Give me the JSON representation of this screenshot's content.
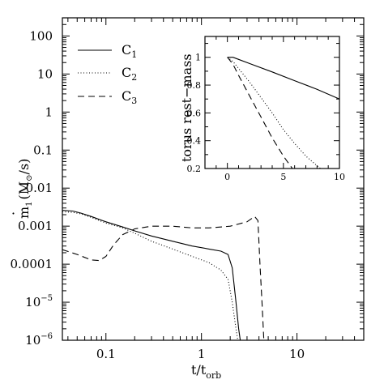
{
  "chart_data": [
    {
      "type": "line",
      "xlabel": "t/t",
      "xlabel_sub": "orb",
      "ylabel_m": "m",
      "ylabel_sub": "1",
      "ylabel_unit": "(M",
      "ylabel_sun": "⊙",
      "ylabel_end": "/s)",
      "x_scale": "log",
      "y_scale": "log",
      "xlim": [
        0.035,
        50
      ],
      "ylim": [
        1e-06,
        300
      ],
      "grid": false,
      "legend_position": "top-left",
      "x_ticks": [
        {
          "value": 0.1,
          "label": "0.1"
        },
        {
          "value": 1,
          "label": "1"
        },
        {
          "value": 10,
          "label": "10"
        }
      ],
      "y_ticks": [
        {
          "value": 100,
          "label": "100",
          "exp": ""
        },
        {
          "value": 10,
          "label": "10",
          "exp": ""
        },
        {
          "value": 1,
          "label": "1",
          "exp": ""
        },
        {
          "value": 0.1,
          "label": "0.1",
          "exp": ""
        },
        {
          "value": 0.01,
          "label": "0.01",
          "exp": ""
        },
        {
          "value": 0.001,
          "label": "0.001",
          "exp": ""
        },
        {
          "value": 0.0001,
          "label": "0.0001",
          "exp": ""
        },
        {
          "value": 1e-05,
          "label": "10",
          "exp": "−5"
        },
        {
          "value": 1e-06,
          "label": "10",
          "exp": "−6"
        }
      ],
      "series": [
        {
          "name": "C",
          "sub": "1",
          "dash": "solid",
          "points": [
            [
              0.035,
              0.0026
            ],
            [
              0.045,
              0.0025
            ],
            [
              0.055,
              0.0022
            ],
            [
              0.07,
              0.0018
            ],
            [
              0.1,
              0.0013
            ],
            [
              0.15,
              0.00095
            ],
            [
              0.2,
              0.00075
            ],
            [
              0.3,
              0.00055
            ],
            [
              0.5,
              0.0004
            ],
            [
              0.8,
              0.0003
            ],
            [
              1.2,
              0.00025
            ],
            [
              1.6,
              0.00022
            ],
            [
              1.9,
              0.00018
            ],
            [
              2.1,
              8e-05
            ],
            [
              2.3,
              1e-05
            ],
            [
              2.45,
              2e-06
            ],
            [
              2.55,
              1e-06
            ]
          ]
        },
        {
          "name": "C",
          "sub": "2",
          "dash": "dotted",
          "points": [
            [
              0.035,
              0.0024
            ],
            [
              0.045,
              0.0023
            ],
            [
              0.055,
              0.0021
            ],
            [
              0.07,
              0.0017
            ],
            [
              0.1,
              0.0012
            ],
            [
              0.15,
              0.0009
            ],
            [
              0.2,
              0.00065
            ],
            [
              0.3,
              0.0004
            ],
            [
              0.5,
              0.00025
            ],
            [
              0.8,
              0.00016
            ],
            [
              1.2,
              0.00011
            ],
            [
              1.6,
              7e-05
            ],
            [
              1.9,
              4e-05
            ],
            [
              2.1,
              1e-05
            ],
            [
              2.3,
              2e-06
            ],
            [
              2.4,
              1e-06
            ]
          ]
        },
        {
          "name": "C",
          "sub": "3",
          "dash": "dashed",
          "points": [
            [
              0.035,
              0.00024
            ],
            [
              0.05,
              0.00018
            ],
            [
              0.07,
              0.00013
            ],
            [
              0.085,
              0.000125
            ],
            [
              0.1,
              0.00016
            ],
            [
              0.12,
              0.00032
            ],
            [
              0.15,
              0.0006
            ],
            [
              0.2,
              0.00085
            ],
            [
              0.3,
              0.001
            ],
            [
              0.5,
              0.001
            ],
            [
              0.8,
              0.0009
            ],
            [
              1.2,
              0.0009
            ],
            [
              2.0,
              0.001
            ],
            [
              3.0,
              0.0013
            ],
            [
              3.6,
              0.0018
            ],
            [
              3.9,
              0.0014
            ],
            [
              4.1,
              0.0001
            ],
            [
              4.3,
              1e-05
            ],
            [
              4.5,
              1e-06
            ]
          ]
        }
      ]
    },
    {
      "type": "line",
      "ylabel": "torus rest−mass",
      "xlabel": "",
      "xlim": [
        -2,
        10
      ],
      "ylim": [
        0.2,
        1.15
      ],
      "grid": false,
      "x_ticks": [
        {
          "value": 0,
          "label": "0"
        },
        {
          "value": 5,
          "label": "5"
        },
        {
          "value": 10,
          "label": "10"
        }
      ],
      "y_ticks": [
        {
          "value": 0.2,
          "label": "0.2"
        },
        {
          "value": 0.4,
          "label": "0.4"
        },
        {
          "value": 0.6,
          "label": "0.6"
        },
        {
          "value": 0.8,
          "label": "0.8"
        },
        {
          "value": 1,
          "label": "1"
        }
      ],
      "series": [
        {
          "name": "C1",
          "dash": "solid",
          "points": [
            [
              0,
              1
            ],
            [
              0.5,
              1
            ],
            [
              1,
              0.985
            ],
            [
              2,
              0.955
            ],
            [
              4,
              0.895
            ],
            [
              6,
              0.832
            ],
            [
              8,
              0.77
            ],
            [
              10,
              0.7
            ]
          ]
        },
        {
          "name": "C2",
          "dash": "dotted",
          "points": [
            [
              0,
              1
            ],
            [
              0.5,
              0.97
            ],
            [
              1,
              0.92
            ],
            [
              2,
              0.82
            ],
            [
              3,
              0.71
            ],
            [
              4,
              0.6
            ],
            [
              5,
              0.48
            ],
            [
              6,
              0.38
            ],
            [
              7,
              0.29
            ],
            [
              8,
              0.22
            ],
            [
              8.3,
              0.2
            ]
          ]
        },
        {
          "name": "C3",
          "dash": "dashed",
          "points": [
            [
              0,
              1
            ],
            [
              0.5,
              0.95
            ],
            [
              1,
              0.87
            ],
            [
              2,
              0.72
            ],
            [
              3,
              0.57
            ],
            [
              4,
              0.42
            ],
            [
              5,
              0.29
            ],
            [
              5.8,
              0.2
            ]
          ]
        }
      ]
    }
  ]
}
